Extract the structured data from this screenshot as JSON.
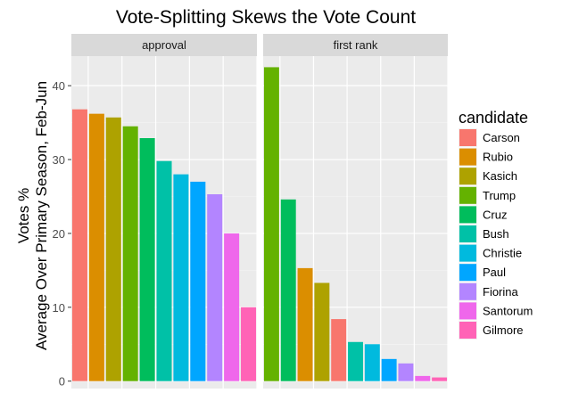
{
  "chart_data": {
    "type": "bar",
    "title": "Vote-Splitting Skews the Vote Count",
    "ylabel_line1": "Votes %",
    "ylabel_line2": "Average Over Primary Season, Feb-Jun",
    "xlabel": "",
    "ylim": [
      -1,
      44
    ],
    "yticks": [
      0,
      10,
      20,
      30,
      40
    ],
    "grid": true,
    "legend_position": "right",
    "legend_title": "candidate",
    "categories": [
      "Carson",
      "Rubio",
      "Kasich",
      "Trump",
      "Cruz",
      "Bush",
      "Christie",
      "Paul",
      "Fiorina",
      "Santorum",
      "Gilmore"
    ],
    "colors": [
      "#F8766D",
      "#DB8E00",
      "#AEA200",
      "#64B200",
      "#00BD5C",
      "#00C1A7",
      "#00BADE",
      "#00A6FF",
      "#B385FF",
      "#EF67EB",
      "#FF63B6"
    ],
    "panels": [
      {
        "name": "approval",
        "values": [
          36.8,
          36.2,
          35.7,
          34.5,
          32.9,
          29.8,
          28.0,
          27.0,
          25.3,
          20.0,
          10.0
        ]
      },
      {
        "name": "first rank",
        "values": [
          42.5,
          24.6,
          15.3,
          13.3,
          8.4,
          5.3,
          5.0,
          3.0,
          2.4,
          0.7,
          0.5
        ],
        "order": [
          "Trump",
          "Cruz",
          "Rubio",
          "Kasich",
          "Carson",
          "Bush",
          "Christie",
          "Paul",
          "Fiorina",
          "Santorum",
          "Gilmore"
        ]
      }
    ]
  }
}
